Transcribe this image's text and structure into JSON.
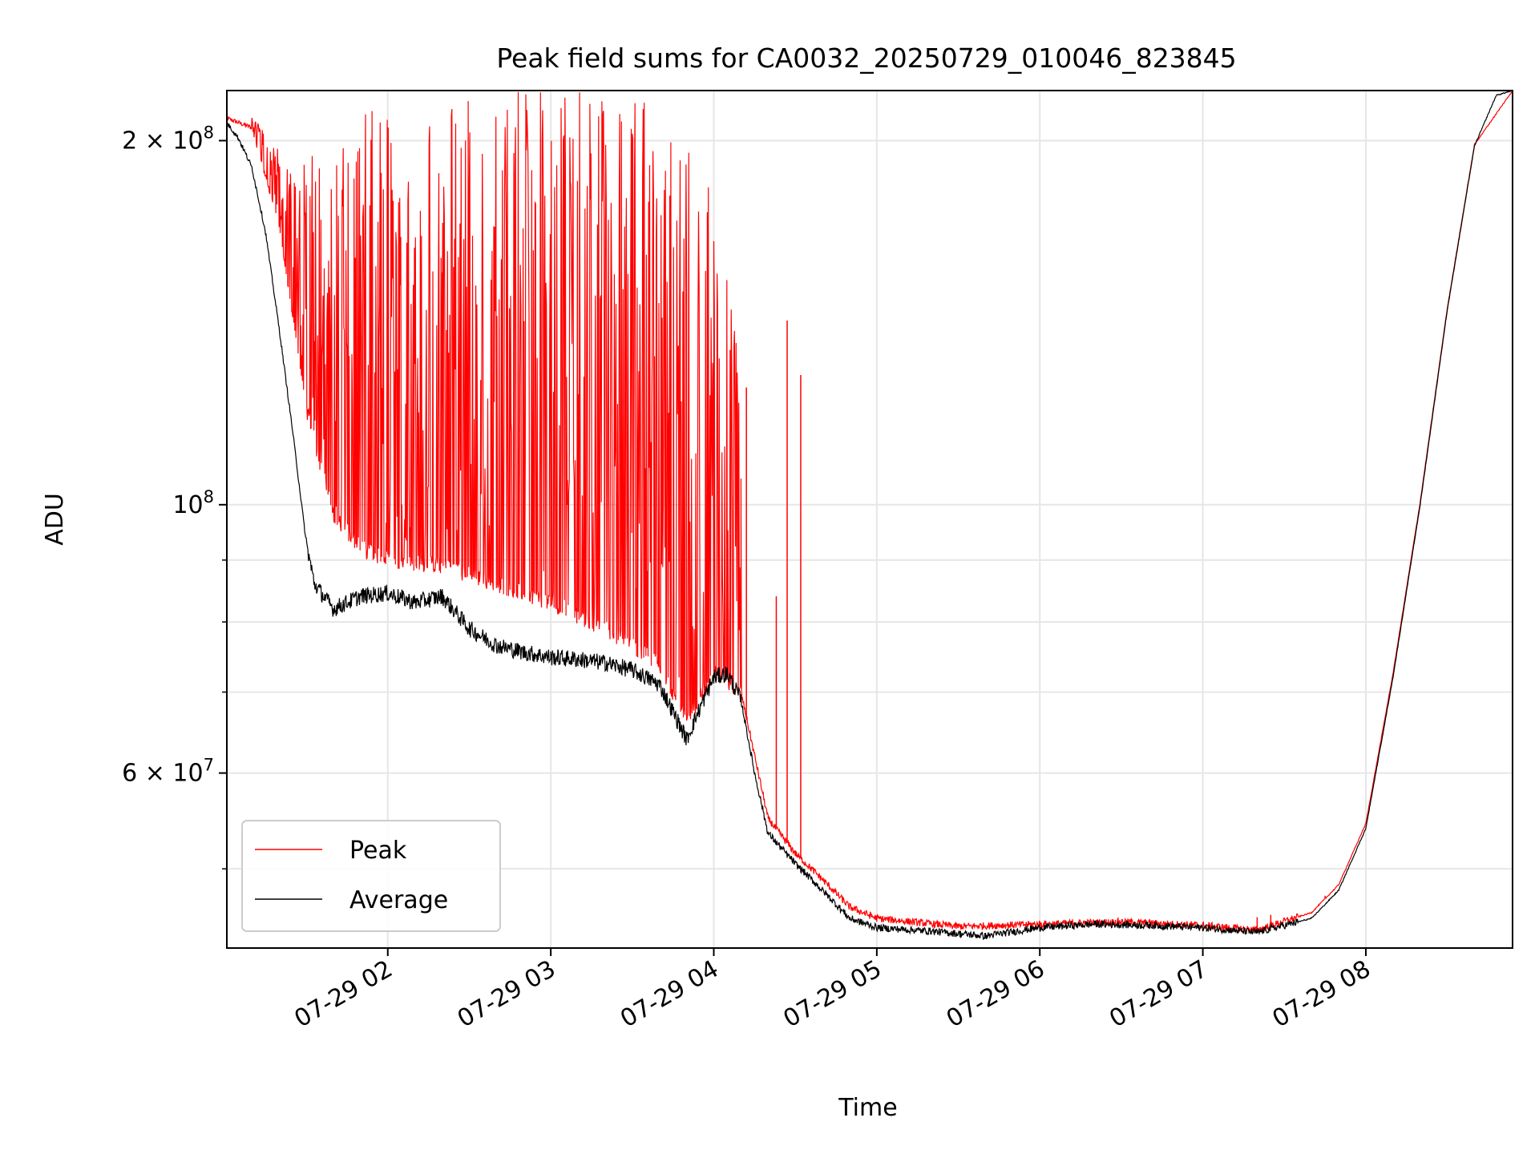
{
  "chart_data": {
    "type": "line",
    "title": "Peak field sums for CA0032_20250729_010046_823845",
    "xlabel": "Time",
    "ylabel": "ADU",
    "x_range": [
      "2025-07-29 01:00:46",
      "2025-07-29 08:54:00"
    ],
    "y_scale": "log",
    "ylim": [
      43000000,
      220000000
    ],
    "grid": true,
    "legend_position": "lower-left",
    "x_tick_labels": [
      "07-29 02",
      "07-29 03",
      "07-29 04",
      "07-29 05",
      "07-29 06",
      "07-29 07",
      "07-29 08"
    ],
    "x_ticks": [
      "2025-07-29 02:00",
      "2025-07-29 03:00",
      "2025-07-29 04:00",
      "2025-07-29 05:00",
      "2025-07-29 06:00",
      "2025-07-29 07:00",
      "2025-07-29 08:00"
    ],
    "y_tick_labels": [
      {
        "value": 200000000,
        "base": "2 × 10",
        "exp": "8"
      },
      {
        "value": 100000000,
        "base": "10",
        "exp": "8"
      },
      {
        "value": 60000000,
        "base": "6 × 10",
        "exp": "7"
      }
    ],
    "y_minor_ticks": [
      50000000,
      70000000,
      80000000,
      90000000
    ],
    "series": [
      {
        "name": "Average",
        "color": "#000000",
        "points": [
          [
            "2025-07-29 01:00",
            208000000
          ],
          [
            "2025-07-29 01:05",
            201000000
          ],
          [
            "2025-07-29 01:10",
            190000000
          ],
          [
            "2025-07-29 01:15",
            168000000
          ],
          [
            "2025-07-29 01:20",
            140000000
          ],
          [
            "2025-07-29 01:25",
            115000000
          ],
          [
            "2025-07-29 01:30",
            93000000
          ],
          [
            "2025-07-29 01:33",
            86000000
          ],
          [
            "2025-07-29 01:40",
            82000000
          ],
          [
            "2025-07-29 01:50",
            84000000
          ],
          [
            "2025-07-29 02:00",
            84500000
          ],
          [
            "2025-07-29 02:10",
            83000000
          ],
          [
            "2025-07-29 02:20",
            84000000
          ],
          [
            "2025-07-29 02:30",
            79000000
          ],
          [
            "2025-07-29 02:40",
            76500000
          ],
          [
            "2025-07-29 02:50",
            75500000
          ],
          [
            "2025-07-29 03:00",
            74800000
          ],
          [
            "2025-07-29 03:10",
            74500000
          ],
          [
            "2025-07-29 03:20",
            74000000
          ],
          [
            "2025-07-29 03:30",
            73000000
          ],
          [
            "2025-07-29 03:40",
            71000000
          ],
          [
            "2025-07-29 03:50",
            64000000
          ],
          [
            "2025-07-29 03:55",
            68000000
          ],
          [
            "2025-07-29 04:00",
            72000000
          ],
          [
            "2025-07-29 04:05",
            72500000
          ],
          [
            "2025-07-29 04:10",
            69000000
          ],
          [
            "2025-07-29 04:15",
            60000000
          ],
          [
            "2025-07-29 04:20",
            53500000
          ],
          [
            "2025-07-29 04:30",
            50500000
          ],
          [
            "2025-07-29 04:40",
            48000000
          ],
          [
            "2025-07-29 04:50",
            45500000
          ],
          [
            "2025-07-29 05:00",
            44700000
          ],
          [
            "2025-07-29 05:20",
            44400000
          ],
          [
            "2025-07-29 05:40",
            44000000
          ],
          [
            "2025-07-29 06:00",
            44700000
          ],
          [
            "2025-07-29 06:20",
            45000000
          ],
          [
            "2025-07-29 06:40",
            44900000
          ],
          [
            "2025-07-29 07:00",
            44700000
          ],
          [
            "2025-07-29 07:20",
            44300000
          ],
          [
            "2025-07-29 07:40",
            45500000
          ],
          [
            "2025-07-29 07:50",
            48000000
          ],
          [
            "2025-07-29 08:00",
            54000000
          ],
          [
            "2025-07-29 08:10",
            72000000
          ],
          [
            "2025-07-29 08:20",
            100000000
          ],
          [
            "2025-07-29 08:30",
            145000000
          ],
          [
            "2025-07-29 08:40",
            198000000
          ],
          [
            "2025-07-29 08:48",
            218000000
          ],
          [
            "2025-07-29 08:54",
            220000000
          ]
        ]
      },
      {
        "name": "Peak",
        "color": "#ff0000",
        "points": [
          [
            "2025-07-29 01:00",
            209000000
          ],
          [
            "2025-07-29 01:10",
            205000000
          ],
          [
            "2025-07-29 01:20",
            170000000
          ],
          [
            "2025-07-29 01:30",
            120000000
          ],
          [
            "2025-07-29 01:40",
            98000000
          ],
          [
            "2025-07-29 01:50",
            92000000
          ],
          [
            "2025-07-29 02:00",
            90000000
          ],
          [
            "2025-07-29 02:20",
            89000000
          ],
          [
            "2025-07-29 02:40",
            86000000
          ],
          [
            "2025-07-29 03:00",
            83000000
          ],
          [
            "2025-07-29 03:20",
            79000000
          ],
          [
            "2025-07-29 03:40",
            74000000
          ],
          [
            "2025-07-29 03:50",
            66000000
          ],
          [
            "2025-07-29 04:00",
            73000000
          ],
          [
            "2025-07-29 04:10",
            70000000
          ],
          [
            "2025-07-29 04:20",
            55000000
          ],
          [
            "2025-07-29 04:30",
            51500000
          ],
          [
            "2025-07-29 04:40",
            49000000
          ],
          [
            "2025-07-29 04:50",
            46500000
          ],
          [
            "2025-07-29 05:00",
            45500000
          ],
          [
            "2025-07-29 05:30",
            44800000
          ],
          [
            "2025-07-29 06:00",
            45000000
          ],
          [
            "2025-07-29 06:30",
            45200000
          ],
          [
            "2025-07-29 07:00",
            44900000
          ],
          [
            "2025-07-29 07:20",
            44500000
          ],
          [
            "2025-07-29 07:40",
            46000000
          ],
          [
            "2025-07-29 07:50",
            48500000
          ],
          [
            "2025-07-29 08:00",
            54500000
          ],
          [
            "2025-07-29 08:10",
            72500000
          ],
          [
            "2025-07-29 08:20",
            100500000
          ],
          [
            "2025-07-29 08:30",
            145500000
          ],
          [
            "2025-07-29 08:40",
            198500000
          ],
          [
            "2025-07-29 08:54",
            220000000
          ]
        ],
        "spike_envelope": [
          [
            "2025-07-29 01:10",
            210000000
          ],
          [
            "2025-07-29 01:25",
            190000000
          ],
          [
            "2025-07-29 01:40",
            200000000
          ],
          [
            "2025-07-29 02:00",
            220000000
          ],
          [
            "2025-07-29 02:30",
            220000000
          ],
          [
            "2025-07-29 03:00",
            220000000
          ],
          [
            "2025-07-29 03:30",
            220000000
          ],
          [
            "2025-07-29 03:50",
            200000000
          ],
          [
            "2025-07-29 04:00",
            185000000
          ],
          [
            "2025-07-29 04:10",
            130000000
          ]
        ],
        "isolated_spikes": [
          [
            "2025-07-29 04:12",
            125000000
          ],
          [
            "2025-07-29 04:23",
            84000000
          ],
          [
            "2025-07-29 04:27",
            142000000
          ],
          [
            "2025-07-29 04:32",
            128000000
          ],
          [
            "2025-07-29 07:20",
            45600000
          ],
          [
            "2025-07-29 07:25",
            45800000
          ],
          [
            "2025-07-29 07:45",
            47500000
          ]
        ]
      }
    ]
  }
}
